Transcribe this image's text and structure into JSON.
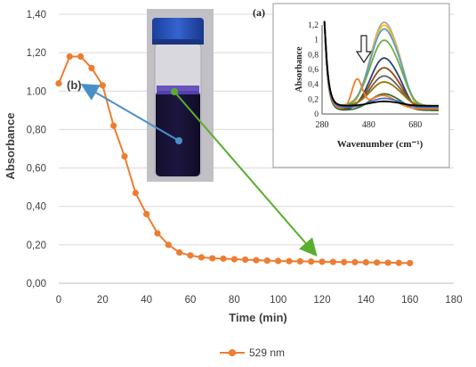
{
  "chart_data": [
    {
      "type": "line",
      "panel_label": "(b)",
      "xlabel": "Time (min)",
      "ylabel": "Absorbance",
      "xlim": [
        0,
        180
      ],
      "ylim": [
        0,
        1.4
      ],
      "x_ticks": [
        "0",
        "20",
        "40",
        "60",
        "80",
        "100",
        "120",
        "140",
        "160",
        "180"
      ],
      "y_ticks": [
        "0,00",
        "0,20",
        "0,40",
        "0,60",
        "0,80",
        "1.00",
        "1,20",
        "1,40"
      ],
      "grid": "horizontal",
      "legend_position": "bottom",
      "series": [
        {
          "name": "529 nm",
          "color": "#ED7D31",
          "x": [
            0,
            5,
            10,
            15,
            20,
            25,
            30,
            35,
            40,
            45,
            50,
            55,
            60,
            65,
            70,
            75,
            80,
            85,
            90,
            95,
            100,
            105,
            110,
            115,
            120,
            125,
            130,
            135,
            140,
            145,
            150,
            155,
            160
          ],
          "y": [
            1.04,
            1.18,
            1.18,
            1.12,
            1.03,
            0.82,
            0.66,
            0.47,
            0.36,
            0.26,
            0.2,
            0.16,
            0.145,
            0.135,
            0.13,
            0.128,
            0.125,
            0.123,
            0.12,
            0.118,
            0.116,
            0.115,
            0.114,
            0.113,
            0.112,
            0.111,
            0.11,
            0.11,
            0.109,
            0.108,
            0.107,
            0.106,
            0.105
          ]
        }
      ]
    },
    {
      "type": "line",
      "panel_label": "(a)",
      "xlabel": "Wavenumber (cm⁻¹)",
      "ylabel": "Absorbance",
      "xlim": [
        280,
        780
      ],
      "ylim": [
        0,
        1.2
      ],
      "x_ticks": [
        "280",
        "480",
        "680"
      ],
      "y_ticks": [
        "0",
        "0,2",
        "0,4",
        "0,6",
        "0,8",
        "1",
        "1,2"
      ],
      "series": [
        {
          "color": "#A5A5A5",
          "peak": 1.18
        },
        {
          "color": "#FFC000",
          "peak": 1.12
        },
        {
          "color": "#5B9BD5",
          "peak": 1.05
        },
        {
          "color": "#70AD47",
          "peak": 0.88
        },
        {
          "color": "#264478",
          "peak": 0.7
        },
        {
          "color": "#9E480E",
          "peak": 0.55
        },
        {
          "color": "#636363",
          "peak": 0.42
        },
        {
          "color": "#997300",
          "peak": 0.32
        },
        {
          "color": "#43682B",
          "peak": 0.22
        },
        {
          "color": "#ED7D31",
          "peak": 0.4
        },
        {
          "color": "#4472C4",
          "peak": 0.12
        },
        {
          "color": "#000000",
          "peak": 0.06
        }
      ]
    }
  ]
}
